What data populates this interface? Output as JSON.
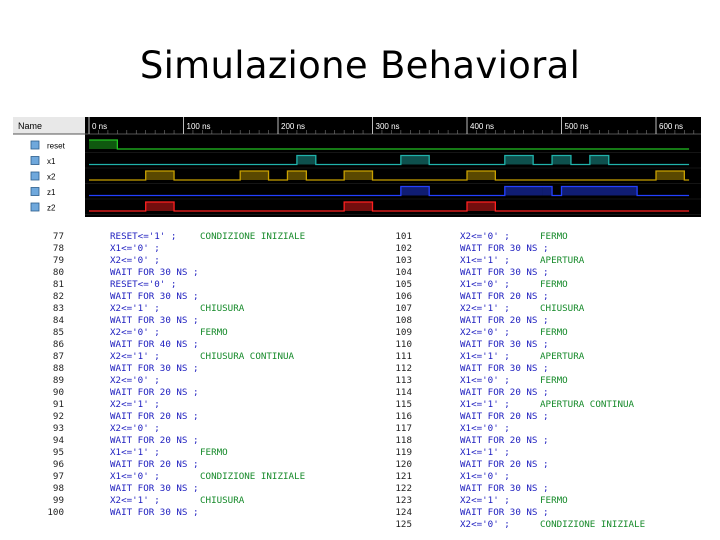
{
  "title": "Simulazione Behavioral",
  "waveform": {
    "name_header": "Name",
    "time_labels": [
      "0 ns",
      "100 ns",
      "200 ns",
      "300 ns",
      "400 ns",
      "500 ns",
      "600 ns"
    ],
    "signals": [
      {
        "name": "reset",
        "color": "#22c322"
      },
      {
        "name": "x1",
        "color": "#20b2aa"
      },
      {
        "name": "x2",
        "color": "#c8a000"
      },
      {
        "name": "z1",
        "color": "#2340ff"
      },
      {
        "name": "z2",
        "color": "#ff2020"
      }
    ],
    "colors": {
      "background": "#000000",
      "name_area": "#ffffff",
      "grid": "#2a2a2a",
      "text": "#ffffff"
    }
  },
  "code_left": [
    {
      "n": "77",
      "s": "RESET<='1' ;",
      "c": "CONDIZIONE INIZIALE"
    },
    {
      "n": "78",
      "s": "X1<='0' ;",
      "c": ""
    },
    {
      "n": "79",
      "s": "X2<='0' ;",
      "c": ""
    },
    {
      "n": "80",
      "s": "WAIT FOR 30 NS ;",
      "c": ""
    },
    {
      "n": "81",
      "s": "RESET<='0' ;",
      "c": ""
    },
    {
      "n": "82",
      "s": "WAIT FOR 30 NS ;",
      "c": ""
    },
    {
      "n": "83",
      "s": "X2<='1' ;",
      "c": "CHIUSURA"
    },
    {
      "n": "84",
      "s": "WAIT FOR 30 NS ;",
      "c": ""
    },
    {
      "n": "85",
      "s": "X2<='0' ;",
      "c": "FERMO"
    },
    {
      "n": "86",
      "s": "WAIT FOR 40 NS ;",
      "c": ""
    },
    {
      "n": "87",
      "s": "X2<='1' ;",
      "c": "CHIUSURA CONTINUA"
    },
    {
      "n": "88",
      "s": "WAIT FOR 30 NS ;",
      "c": ""
    },
    {
      "n": "89",
      "s": "X2<='0' ;",
      "c": ""
    },
    {
      "n": "90",
      "s": "WAIT FOR 20 NS ;",
      "c": ""
    },
    {
      "n": "91",
      "s": "X2<='1' ;",
      "c": ""
    },
    {
      "n": "92",
      "s": "WAIT FOR 20 NS ;",
      "c": ""
    },
    {
      "n": "93",
      "s": "X2<='0' ;",
      "c": ""
    },
    {
      "n": "94",
      "s": "WAIT FOR 20 NS ;",
      "c": ""
    },
    {
      "n": "95",
      "s": "X1<='1' ;",
      "c": "FERMO"
    },
    {
      "n": "96",
      "s": "WAIT FOR 20 NS ;",
      "c": ""
    },
    {
      "n": "97",
      "s": "X1<='0' ;",
      "c": "CONDIZIONE INIZIALE"
    },
    {
      "n": "98",
      "s": "WAIT FOR 30 NS ;",
      "c": ""
    },
    {
      "n": "99",
      "s": "X2<='1' ;",
      "c": "CHIUSURA"
    },
    {
      "n": "100",
      "s": "WAIT FOR 30 NS ;",
      "c": ""
    }
  ],
  "code_right": [
    {
      "n": "101",
      "s": "X2<='0' ;",
      "c": "FERMO"
    },
    {
      "n": "102",
      "s": "WAIT FOR 30 NS ;",
      "c": ""
    },
    {
      "n": "103",
      "s": "X1<='1' ;",
      "c": "APERTURA"
    },
    {
      "n": "104",
      "s": "WAIT FOR 30 NS ;",
      "c": ""
    },
    {
      "n": "105",
      "s": "X1<='0' ;",
      "c": "FERMO"
    },
    {
      "n": "106",
      "s": "WAIT FOR 20 NS ;",
      "c": ""
    },
    {
      "n": "107",
      "s": "X2<='1' ;",
      "c": "CHIUSURA"
    },
    {
      "n": "108",
      "s": "WAIT FOR 20 NS ;",
      "c": ""
    },
    {
      "n": "109",
      "s": "X2<='0' ;",
      "c": "FERMO"
    },
    {
      "n": "110",
      "s": "WAIT FOR 30 NS ;",
      "c": ""
    },
    {
      "n": "111",
      "s": "X1<='1' ;",
      "c": "APERTURA"
    },
    {
      "n": "112",
      "s": "WAIT FOR 30 NS ;",
      "c": ""
    },
    {
      "n": "113",
      "s": "X1<='0' ;",
      "c": "FERMO"
    },
    {
      "n": "114",
      "s": "WAIT FOR 20 NS ;",
      "c": ""
    },
    {
      "n": "115",
      "s": "X1<='1' ;",
      "c": "APERTURA CONTINUA"
    },
    {
      "n": "116",
      "s": "WAIT FOR 20 NS ;",
      "c": ""
    },
    {
      "n": "117",
      "s": "X1<='0' ;",
      "c": ""
    },
    {
      "n": "118",
      "s": "WAIT FOR 20 NS ;",
      "c": ""
    },
    {
      "n": "119",
      "s": "X1<='1' ;",
      "c": ""
    },
    {
      "n": "120",
      "s": "WAIT FOR 20 NS ;",
      "c": ""
    },
    {
      "n": "121",
      "s": "X1<='0' ;",
      "c": ""
    },
    {
      "n": "122",
      "s": "WAIT FOR 30 NS ;",
      "c": ""
    },
    {
      "n": "123",
      "s": "X2<='1' ;",
      "c": "FERMO"
    },
    {
      "n": "124",
      "s": "WAIT FOR 30 NS ;",
      "c": ""
    },
    {
      "n": "125",
      "s": "X2<='0' ;",
      "c": "CONDIZIONE INIZIALE"
    }
  ]
}
